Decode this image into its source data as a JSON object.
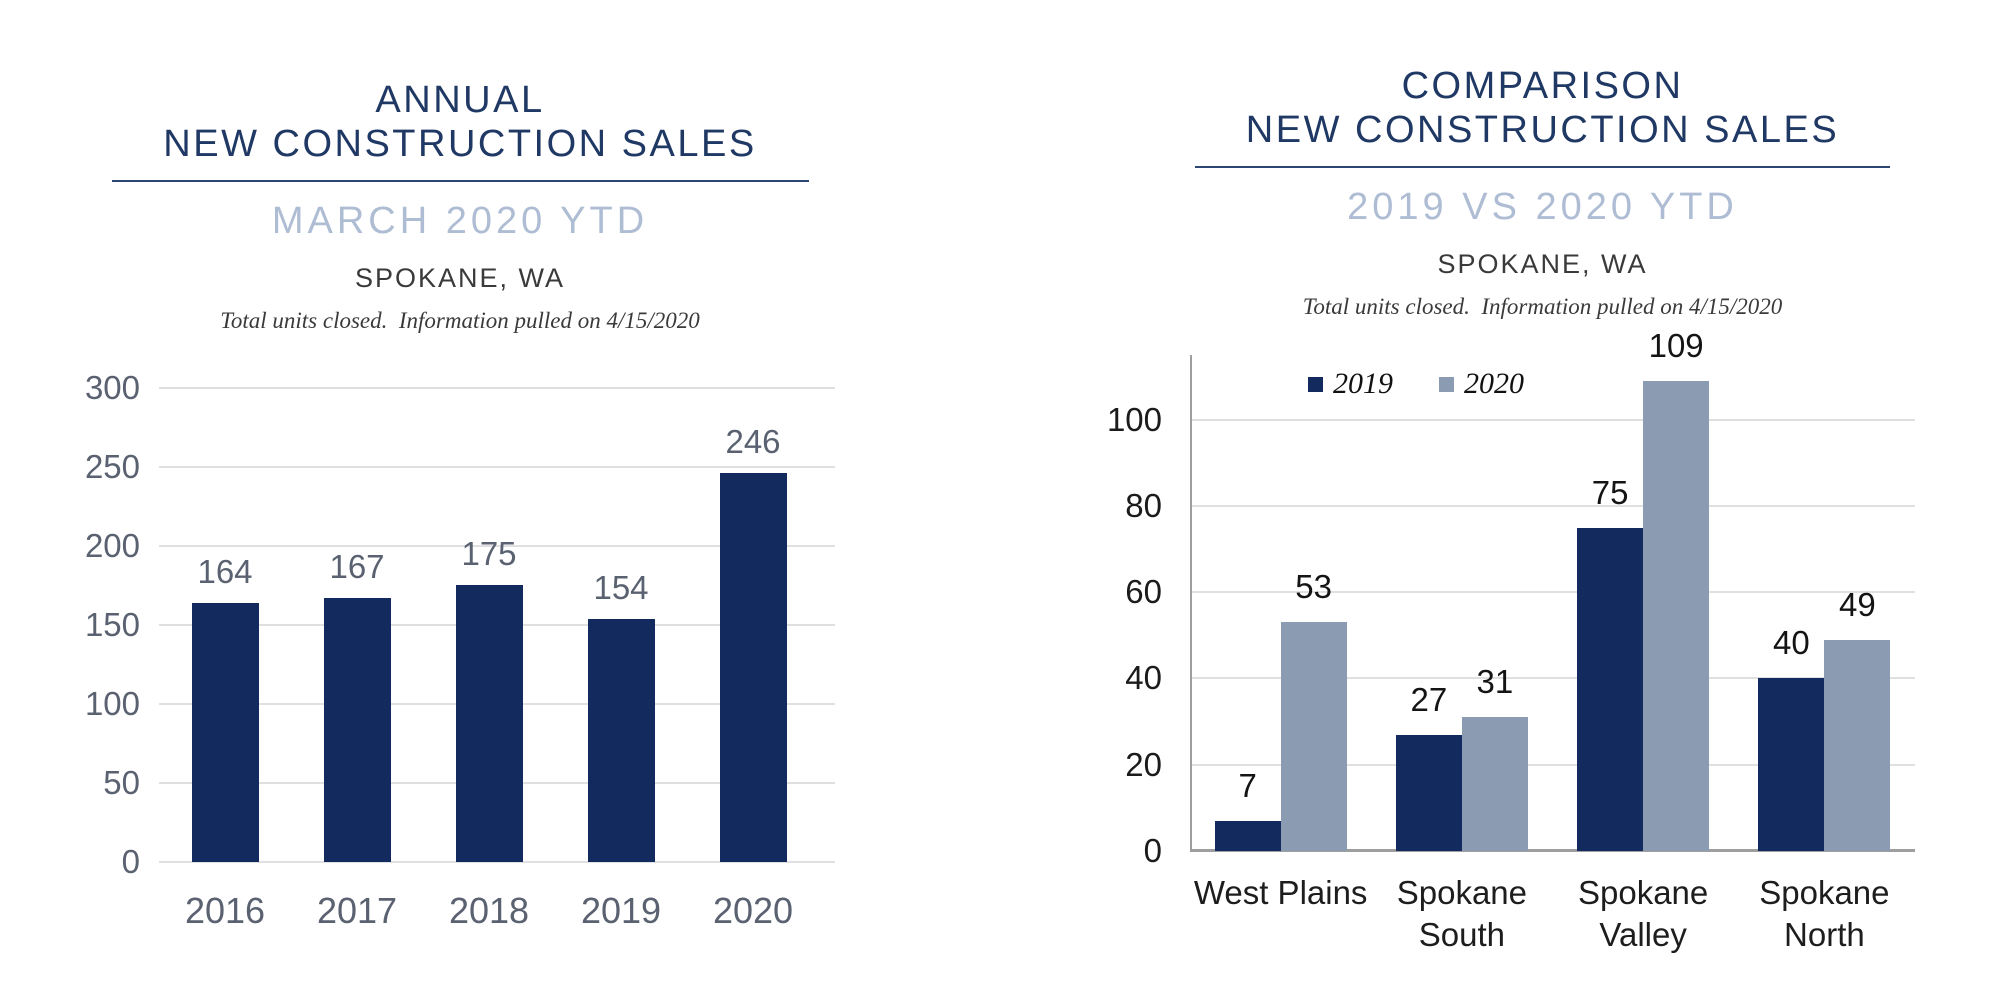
{
  "page": {
    "background": "#ffffff"
  },
  "colors": {
    "navy_bar": "#122a5e",
    "steel_bar": "#8a9bb2",
    "title_navy": "#1f3864",
    "subtitle_blue": "#aebdd3",
    "rule_navy": "#2c4573",
    "gridline": "#e0e0e0",
    "axis_line": "#9e9e9e",
    "left_axis_text": "#5a6170",
    "right_axis_text": "#1b1b1b",
    "location_text": "#3a3a3a",
    "note_text": "#3a3a3a"
  },
  "chart_data": [
    {
      "type": "bar",
      "title_line1": "ANNUAL",
      "title_line2": "NEW CONSTRUCTION SALES",
      "subtitle": "MARCH 2020 YTD",
      "location": "SPOKANE, WA",
      "note": "Total units closed.  Information pulled on 4/15/2020",
      "categories": [
        "2016",
        "2017",
        "2018",
        "2019",
        "2020"
      ],
      "values": [
        164,
        167,
        175,
        154,
        246
      ],
      "ylim": [
        0,
        300
      ],
      "yticks": [
        0,
        50,
        100,
        150,
        200,
        250,
        300
      ],
      "grid": true,
      "axis_frame": false,
      "legend_position": "none",
      "bar_color": "#122a5e",
      "value_label_color": "#5a6170",
      "tick_label_color": "#5a6170",
      "category_label_color": "#5a6170"
    },
    {
      "type": "bar",
      "grouped": true,
      "title_line1": "COMPARISON",
      "title_line2": "NEW CONSTRUCTION SALES",
      "subtitle": "2019 VS 2020 YTD",
      "location": "SPOKANE, WA",
      "note": "Total units closed.  Information pulled on 4/15/2020",
      "categories": [
        "West Plains",
        "Spokane South",
        "Spokane Valley",
        "Spokane North"
      ],
      "category_labels": [
        "West Plains",
        "Spokane\nSouth",
        "Spokane\nValley",
        "Spokane\nNorth"
      ],
      "series": [
        {
          "name": "2019",
          "color": "#122a5e",
          "values": [
            7,
            27,
            75,
            40
          ]
        },
        {
          "name": "2020",
          "color": "#8a9bb2",
          "values": [
            53,
            31,
            109,
            49
          ]
        }
      ],
      "ylim": [
        0,
        115
      ],
      "yticks": [
        0,
        20,
        40,
        60,
        80,
        100
      ],
      "grid": true,
      "axis_frame": true,
      "legend_position": "top",
      "value_label_color": "#141414",
      "tick_label_color": "#1b1b1b",
      "category_label_color": "#1d1d1d"
    }
  ]
}
